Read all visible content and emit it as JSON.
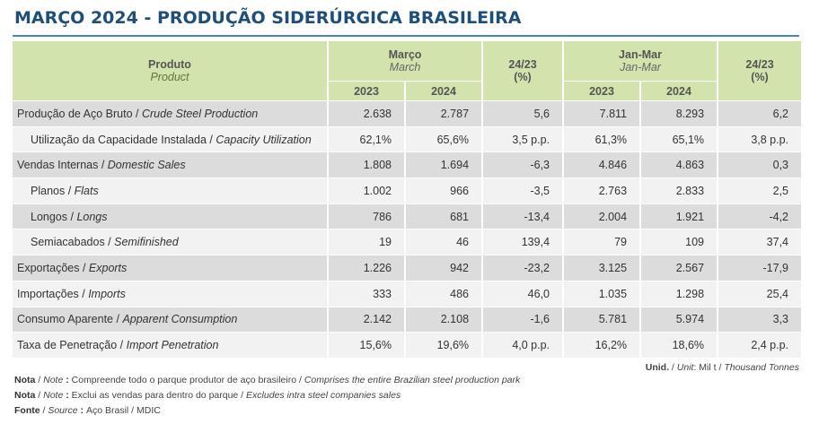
{
  "title": "MARÇO 2024 - PRODUÇÃO SIDERÚRGICA BRASILEIRA",
  "header": {
    "product_pt": "Produto",
    "product_en": "Product",
    "march_pt": "Março",
    "march_en": "March",
    "var1_top": "24/23",
    "var1_bottom": "(%)",
    "janmar_pt": "Jan-Mar",
    "janmar_en": "Jan-Mar",
    "var2_top": "24/23",
    "var2_bottom": "(%)",
    "y2023": "2023",
    "y2024": "2024",
    "y2023b": "2023",
    "y2024b": "2024"
  },
  "rows": [
    {
      "pt": "Produção de Aço Bruto / ",
      "en": "Crude Steel Production",
      "m2023": "2.638",
      "m2024": "2.787",
      "mvar": "5,6",
      "j2023": "7.811",
      "j2024": "8.293",
      "jvar": "6,2"
    },
    {
      "pt": "Utilização da Capacidade Instalada / ",
      "en": "Capacity Utilization",
      "m2023": "62,1%",
      "m2024": "65,6%",
      "mvar": "3,5 p.p.",
      "j2023": "61,3%",
      "j2024": "65,1%",
      "jvar": "3,8 p.p."
    },
    {
      "pt": "Vendas Internas / ",
      "en": "Domestic Sales",
      "m2023": "1.808",
      "m2024": "1.694",
      "mvar": "-6,3",
      "j2023": "4.846",
      "j2024": "4.863",
      "jvar": "0,3"
    },
    {
      "pt": "Planos / ",
      "en": "Flats",
      "m2023": "1.002",
      "m2024": "966",
      "mvar": "-3,5",
      "j2023": "2.763",
      "j2024": "2.833",
      "jvar": "2,5"
    },
    {
      "pt": "Longos / ",
      "en": "Longs",
      "m2023": "786",
      "m2024": "681",
      "mvar": "-13,4",
      "j2023": "2.004",
      "j2024": "1.921",
      "jvar": "-4,2"
    },
    {
      "pt": "Semiacabados / ",
      "en": "Semifinished",
      "m2023": "19",
      "m2024": "46",
      "mvar": "139,4",
      "j2023": "79",
      "j2024": "109",
      "jvar": "37,4"
    },
    {
      "pt": "Exportações / ",
      "en": "Exports",
      "m2023": "1.226",
      "m2024": "942",
      "mvar": "-23,2",
      "j2023": "3.125",
      "j2024": "2.567",
      "jvar": "-17,9"
    },
    {
      "pt": "Importações / ",
      "en": "Imports",
      "m2023": "333",
      "m2024": "486",
      "mvar": "46,0",
      "j2023": "1.035",
      "j2024": "1.298",
      "jvar": "25,4"
    },
    {
      "pt": "Consumo Aparente / ",
      "en": "Apparent Consumption",
      "m2023": "2.142",
      "m2024": "2.108",
      "mvar": "-1,6",
      "j2023": "5.781",
      "j2024": "5.974",
      "jvar": "3,3"
    },
    {
      "pt": "Taxa de Penetração / ",
      "en": "Import Penetration",
      "m2023": "15,6%",
      "m2024": "19,6%",
      "mvar": "4,0 p.p.",
      "j2023": "16,2%",
      "j2024": "18,6%",
      "jvar": "2,4 p.p."
    }
  ],
  "unit": {
    "pt": "Unid.",
    "sep1": " / ",
    "en": "Unit",
    "rest": ": Mil t / ",
    "value_en": "Thousand Tonnes"
  },
  "notes": [
    {
      "label_pt": "Nota",
      "sep": " / ",
      "label_en": "Note",
      "colon": " : ",
      "text_pt": "Compreende todo o parque produtor de aço brasileiro / ",
      "text_en": "Comprises the entire Brazilian steel production park"
    },
    {
      "label_pt": "Nota",
      "sep": " / ",
      "label_en": "Note",
      "colon": " : ",
      "text_pt": "Exclui as vendas para dentro do parque / ",
      "text_en": "Excludes intra steel companies sales"
    },
    {
      "label_pt": "Fonte",
      "sep": " / ",
      "label_en": "Source",
      "colon": " : ",
      "text_pt": "Aço Brasil / MDIC",
      "text_en": ""
    }
  ],
  "colors": {
    "title": "#1f4e79",
    "header_bg": "#d3e3ae",
    "row_dark": "#dcdcdc",
    "row_light": "#f2f2f2"
  }
}
